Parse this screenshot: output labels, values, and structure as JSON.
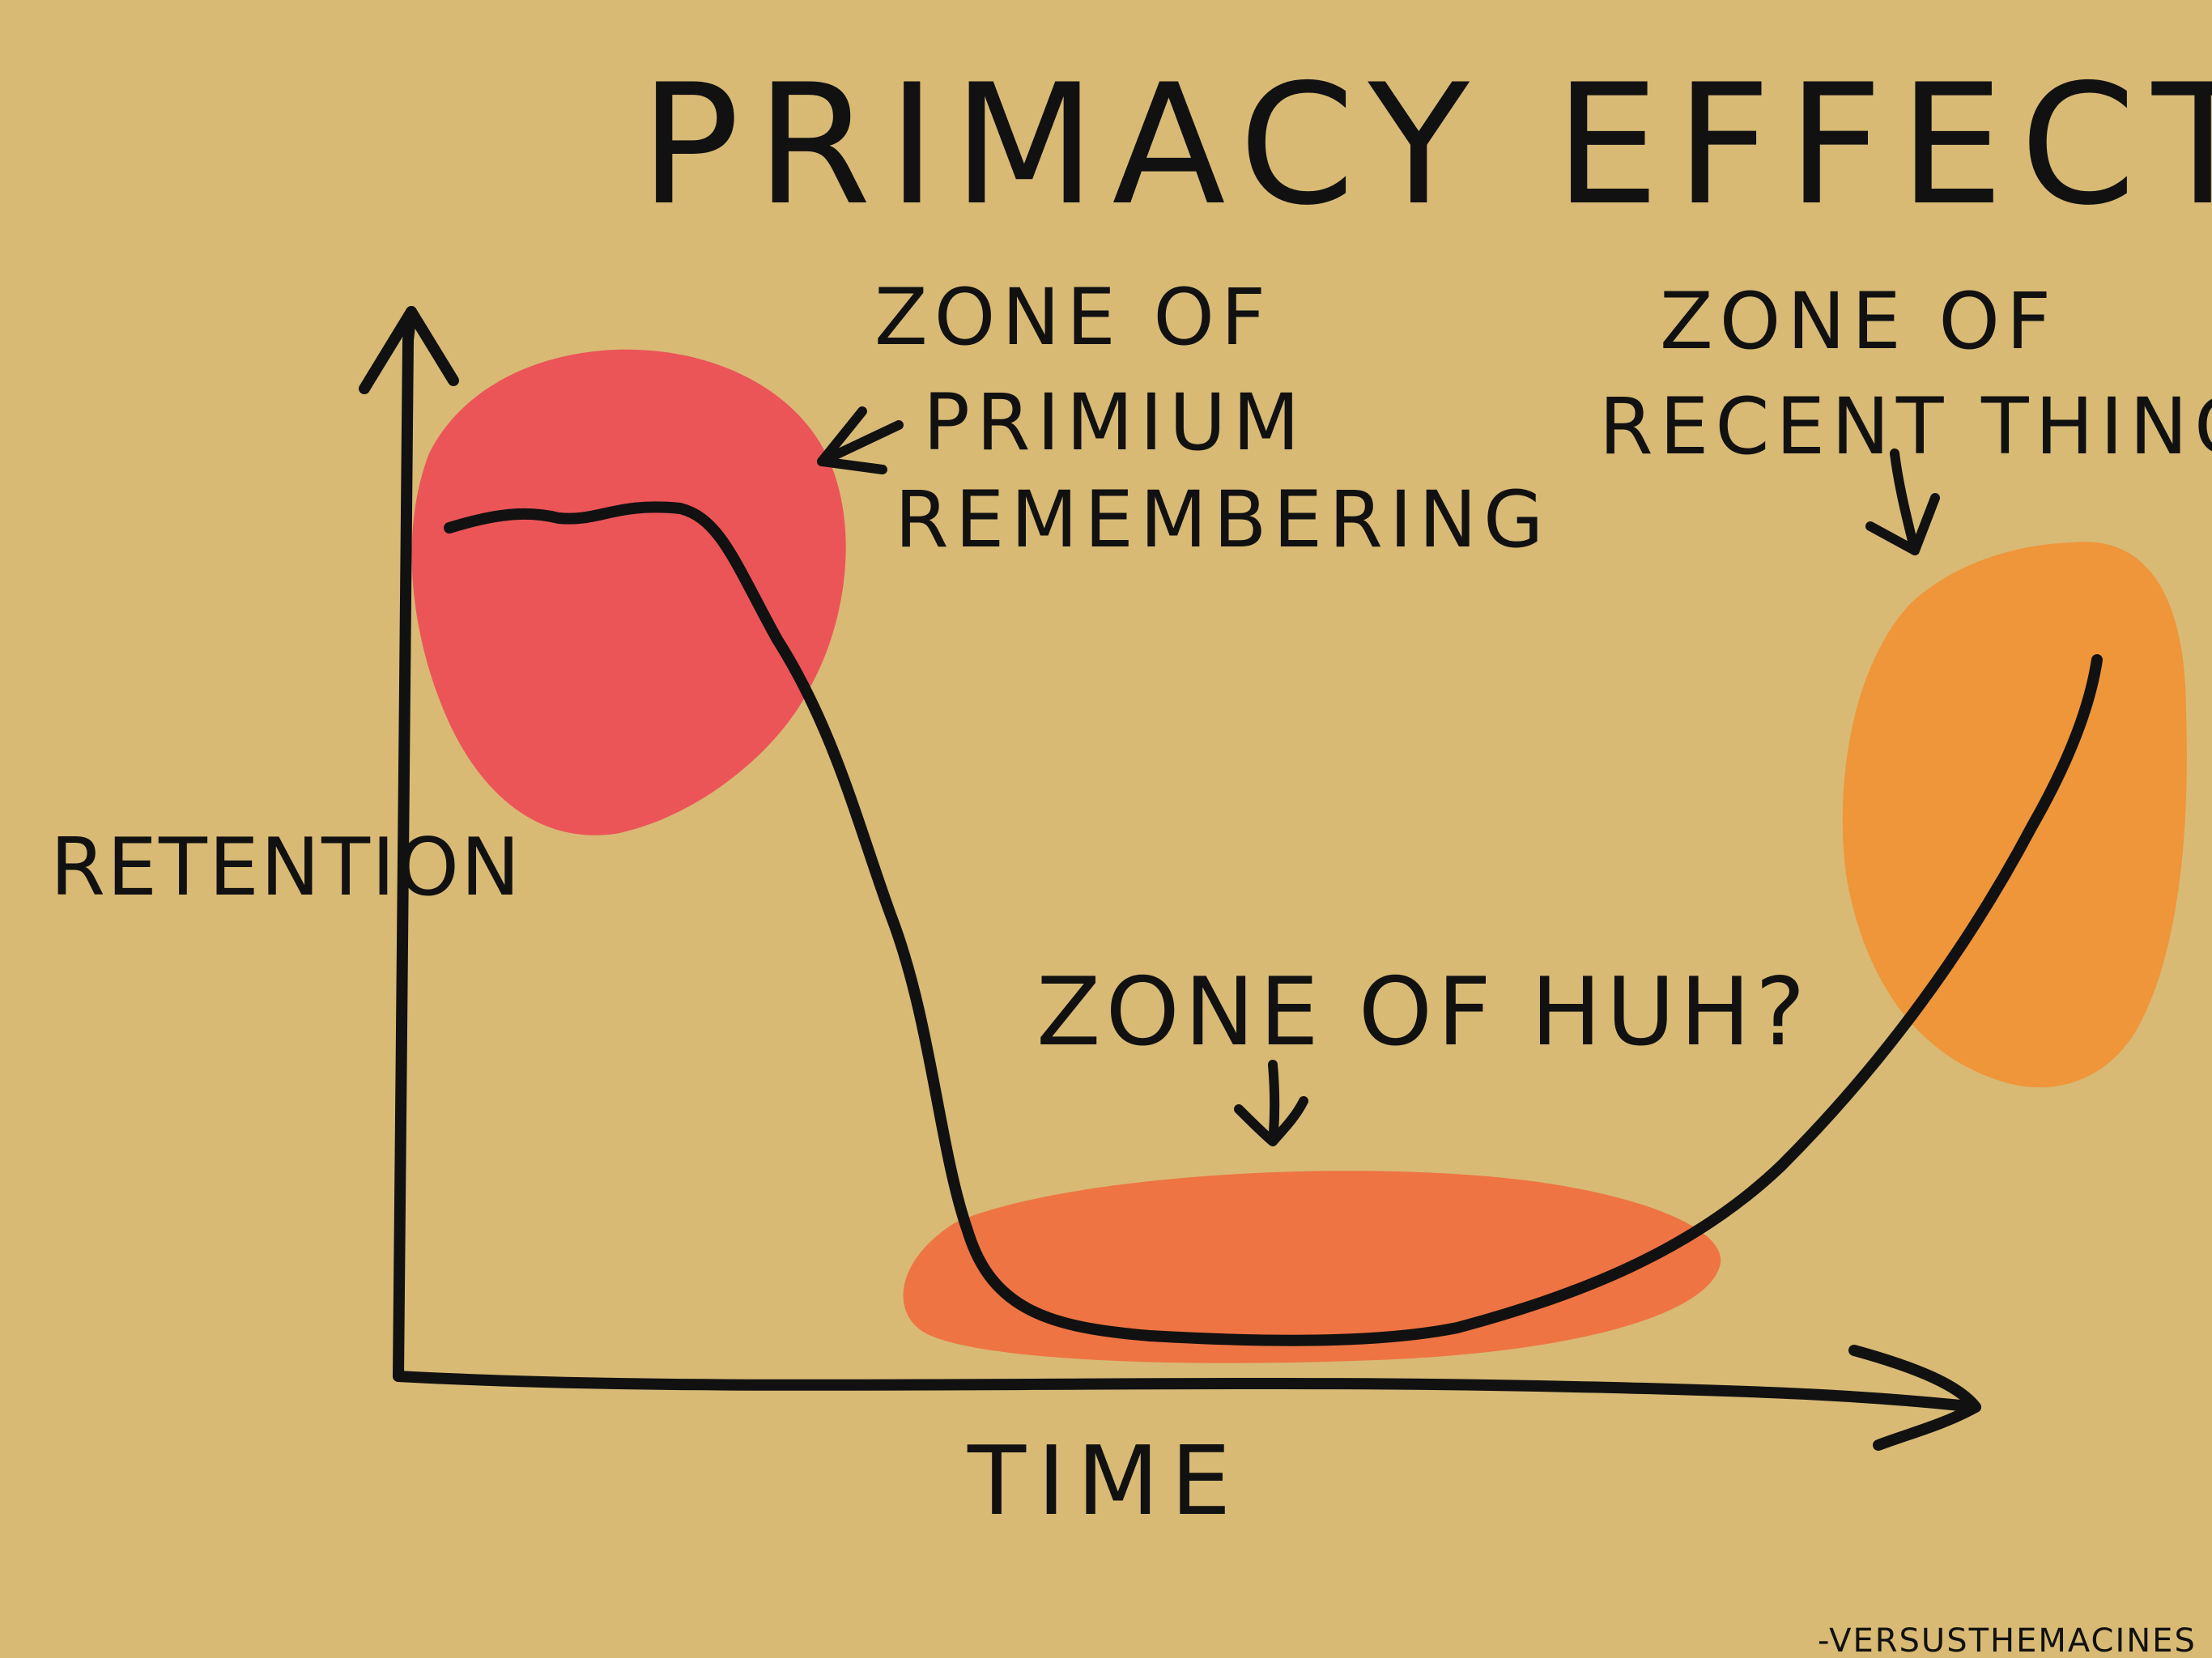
{
  "title": "PRIMACY EFFECT",
  "zones": {
    "primacy": {
      "line1": "ZONE OF",
      "line2": "PRIMIUM",
      "line3": "REMEMBERING",
      "color": "#eb5558"
    },
    "recency": {
      "line1": "ZONE OF",
      "line2": "RECENT THINGS",
      "color": "#ef953a"
    },
    "middle": {
      "line1": "ZONE OF HUH?",
      "color": "#ee7443"
    }
  },
  "axes": {
    "x_label": "TIME",
    "y_label": "RETENTION"
  },
  "signature": "-VERSUSTHEMACINES",
  "colors": {
    "background": "#d8ba75",
    "ink": "#111111"
  }
}
